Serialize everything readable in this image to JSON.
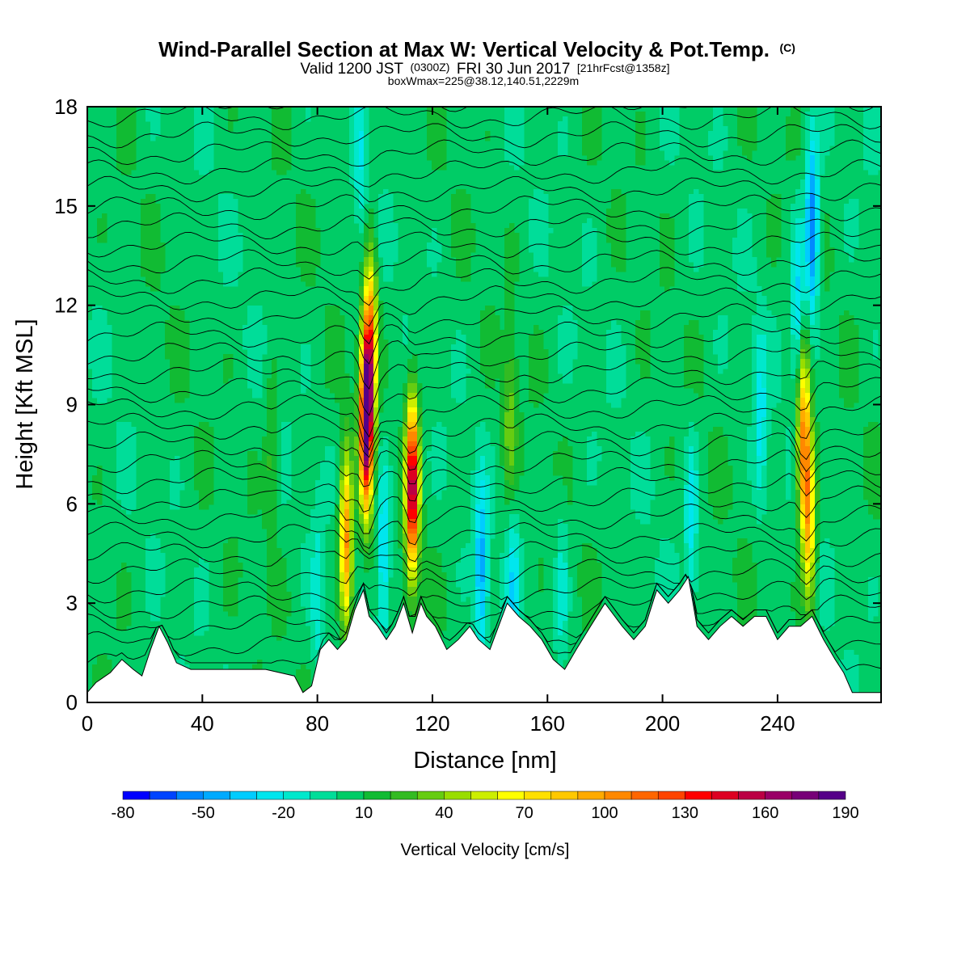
{
  "chart_data": {
    "type": "heatmap",
    "title": "Wind-Parallel Section at Max W: Vertical Velocity & Pot.Temp.",
    "title_mark": "(C)",
    "subtitle": {
      "part1": "Valid 1200 JST",
      "part2": "(0300Z)",
      "part3": "FRI 30 Jun 2017",
      "part4": "[21hrFcst@1358z]"
    },
    "info_line": "boxWmax=225@38.12,140.51,2229m",
    "xlabel": "Distance [nm]",
    "ylabel": "Height [Kft MSL]",
    "xlim": [
      0,
      276
    ],
    "ylim": [
      0,
      18
    ],
    "x_ticks": [
      "0",
      "40",
      "80",
      "120",
      "160",
      "200",
      "240"
    ],
    "x_tick_values": [
      0,
      40,
      80,
      120,
      160,
      200,
      240
    ],
    "y_ticks": [
      "0",
      "3",
      "6",
      "9",
      "12",
      "15",
      "18"
    ],
    "y_tick_values": [
      0,
      3,
      6,
      9,
      12,
      15,
      18
    ],
    "colorbar": {
      "label": "Vertical Velocity [cm/s]",
      "tick_labels": [
        "-80",
        "-50",
        "-20",
        "10",
        "40",
        "70",
        "100",
        "130",
        "160",
        "190"
      ],
      "levels": [
        -80,
        -70,
        -60,
        -50,
        -40,
        -30,
        -20,
        -10,
        0,
        10,
        20,
        30,
        40,
        50,
        60,
        70,
        80,
        90,
        100,
        110,
        120,
        130,
        140,
        150,
        160,
        170,
        180,
        190
      ],
      "colors": [
        "#0000ff",
        "#0044ff",
        "#0088ff",
        "#00aaff",
        "#00ccff",
        "#00e6ee",
        "#00e8cc",
        "#00dd99",
        "#00cc66",
        "#11bb33",
        "#33bb22",
        "#66cc11",
        "#99dd00",
        "#ccee00",
        "#ffff00",
        "#ffe000",
        "#ffc800",
        "#ffaa00",
        "#ff8800",
        "#ff6600",
        "#ff4400",
        "#ff0000",
        "#dd0022",
        "#bb0044",
        "#990066",
        "#770077",
        "#550088"
      ]
    },
    "terrain_kft": [
      [
        0,
        0.3
      ],
      [
        3,
        0.6
      ],
      [
        8,
        0.9
      ],
      [
        12,
        1.3
      ],
      [
        16,
        1.0
      ],
      [
        19,
        0.8
      ],
      [
        22,
        1.6
      ],
      [
        25,
        2.3
      ],
      [
        28,
        1.8
      ],
      [
        31,
        1.2
      ],
      [
        36,
        1.0
      ],
      [
        55,
        1.0
      ],
      [
        62,
        1.0
      ],
      [
        72,
        0.8
      ],
      [
        75,
        0.3
      ],
      [
        78,
        0.5
      ],
      [
        81,
        1.6
      ],
      [
        84,
        1.9
      ],
      [
        87,
        1.6
      ],
      [
        90,
        1.9
      ],
      [
        93,
        2.8
      ],
      [
        96,
        3.4
      ],
      [
        98,
        2.6
      ],
      [
        101,
        2.3
      ],
      [
        104,
        1.9
      ],
      [
        107,
        2.3
      ],
      [
        110,
        3.0
      ],
      [
        113,
        2.1
      ],
      [
        116,
        3.0
      ],
      [
        118,
        2.6
      ],
      [
        121,
        2.3
      ],
      [
        125,
        1.6
      ],
      [
        129,
        1.9
      ],
      [
        133,
        2.3
      ],
      [
        136,
        1.9
      ],
      [
        140,
        1.6
      ],
      [
        143,
        2.3
      ],
      [
        146,
        3.0
      ],
      [
        150,
        2.6
      ],
      [
        154,
        2.3
      ],
      [
        158,
        1.9
      ],
      [
        162,
        1.3
      ],
      [
        166,
        1.0
      ],
      [
        170,
        1.6
      ],
      [
        175,
        2.3
      ],
      [
        180,
        3.0
      ],
      [
        186,
        2.3
      ],
      [
        190,
        1.9
      ],
      [
        194,
        2.3
      ],
      [
        198,
        3.4
      ],
      [
        202,
        3.0
      ],
      [
        206,
        3.4
      ],
      [
        209,
        3.8
      ],
      [
        212,
        2.3
      ],
      [
        216,
        1.9
      ],
      [
        220,
        2.3
      ],
      [
        224,
        2.6
      ],
      [
        228,
        2.3
      ],
      [
        232,
        2.6
      ],
      [
        236,
        2.6
      ],
      [
        240,
        1.9
      ],
      [
        244,
        2.3
      ],
      [
        248,
        2.3
      ],
      [
        252,
        2.6
      ],
      [
        256,
        1.9
      ],
      [
        260,
        1.3
      ],
      [
        263,
        0.9
      ],
      [
        266,
        0.3
      ],
      [
        276,
        0.3
      ]
    ],
    "updraft_cores": [
      {
        "x": 97,
        "z": 8.5,
        "w": 190
      },
      {
        "x": 98.5,
        "z": 11.0,
        "w": 90
      },
      {
        "x": 90,
        "z": 4.8,
        "w": 100
      },
      {
        "x": 113,
        "z": 6.5,
        "w": 160
      },
      {
        "x": 249,
        "z": 8.0,
        "w": 100
      },
      {
        "x": 251,
        "z": 5.5,
        "w": 80
      },
      {
        "x": 64,
        "z": 7.5,
        "w": 20
      },
      {
        "x": 147,
        "z": 8.5,
        "w": 30
      }
    ],
    "downdraft_cores": [
      {
        "x": 252,
        "z": 14.3,
        "w": -70
      },
      {
        "x": 247,
        "z": 12.0,
        "w": -40
      },
      {
        "x": 234,
        "z": 8.5,
        "w": -30
      },
      {
        "x": 137,
        "z": 4.0,
        "w": -50
      },
      {
        "x": 148,
        "z": 3.5,
        "w": -30
      },
      {
        "x": 103,
        "z": 4.5,
        "w": -40
      },
      {
        "x": 210,
        "z": 5.5,
        "w": -30
      },
      {
        "x": 80,
        "z": 3.0,
        "w": -20
      },
      {
        "x": 165,
        "z": 3.5,
        "w": -20
      },
      {
        "x": 95,
        "z": 16.0,
        "w": -20
      }
    ],
    "grid": false
  }
}
